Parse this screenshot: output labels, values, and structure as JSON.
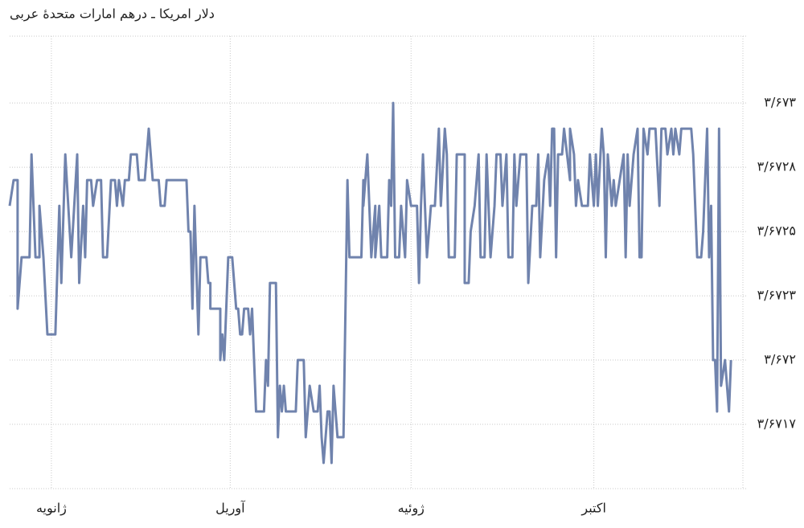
{
  "chart_data": {
    "type": "line",
    "title": "دلار امریکا ـ درهم امارات متحدهٔ عربی",
    "color": "#7083ad",
    "grid": true,
    "xlim": [
      0,
      369
    ],
    "xticks": [
      {
        "value": 21,
        "label": "ژانویه"
      },
      {
        "value": 111,
        "label": "آوریل"
      },
      {
        "value": 202,
        "label": "ژوئیه"
      },
      {
        "value": 294,
        "label": "اکتبر"
      }
    ],
    "ylim": [
      3.6715,
      3.67326
    ],
    "yticks": [
      {
        "value": 3.673,
        "label": "۳/۶۷۳"
      },
      {
        "value": 3.67275,
        "label": "۳/۶۷۲۸"
      },
      {
        "value": 3.6725,
        "label": "۳/۶۷۲۵"
      },
      {
        "value": 3.67225,
        "label": "۳/۶۷۲۳"
      },
      {
        "value": 3.672,
        "label": "۳/۶۷۲"
      },
      {
        "value": 3.67175,
        "label": "۳/۶۷۱۷"
      }
    ],
    "x": [
      0,
      2,
      4,
      4,
      6,
      10,
      11,
      13,
      15,
      15,
      17,
      19,
      23,
      25,
      26,
      28,
      31,
      34,
      35,
      37,
      38,
      39,
      41,
      42,
      44,
      46,
      47,
      49,
      51,
      53,
      54,
      55,
      57,
      58,
      60,
      61,
      64,
      65,
      68,
      69,
      70,
      72,
      75,
      76,
      78,
      79,
      89,
      90,
      91,
      92,
      93,
      95,
      96,
      99,
      100,
      101,
      101,
      106,
      106,
      107,
      108,
      110,
      112,
      114,
      115,
      116,
      117,
      118,
      120,
      121,
      122,
      123,
      124,
      128,
      129,
      130,
      131,
      134,
      135,
      136,
      137,
      138,
      139,
      144,
      145,
      148,
      149,
      151,
      153,
      155,
      156,
      157,
      158,
      160,
      161,
      162,
      163,
      165,
      168,
      170,
      171,
      177,
      178,
      178,
      180,
      181,
      182,
      184,
      184,
      186,
      187,
      190,
      191,
      192,
      193,
      194,
      196,
      197,
      199,
      200,
      202,
      205,
      206,
      207,
      208,
      209,
      210,
      212,
      213,
      214,
      216,
      217,
      219,
      220,
      221,
      224,
      225,
      229,
      229,
      231,
      232,
      234,
      236,
      237,
      239,
      240,
      241,
      242,
      244,
      245,
      247,
      248,
      250,
      251,
      253,
      254,
      255,
      257,
      260,
      261,
      263,
      265,
      266,
      267,
      269,
      271,
      272,
      273,
      274,
      275,
      276,
      278,
      279,
      282,
      282,
      284,
      285,
      286,
      288,
      291,
      292,
      294,
      295,
      296,
      298,
      299,
      300,
      301,
      303,
      304,
      305,
      307,
      309,
      310,
      311,
      312,
      314,
      316,
      317,
      318,
      319,
      321,
      322,
      325,
      327,
      328,
      330,
      331,
      333,
      334,
      335,
      337,
      338,
      343,
      344,
      346,
      348,
      349,
      351,
      352,
      353,
      354,
      355,
      356,
      357,
      358,
      360,
      362,
      363
    ],
    "values": [
      3.6726,
      3.6727,
      3.6727,
      3.6722,
      3.6724,
      3.6724,
      3.6728,
      3.6724,
      3.6724,
      3.6726,
      3.6724,
      3.6721,
      3.6721,
      3.6726,
      3.6723,
      3.6728,
      3.6724,
      3.6728,
      3.6723,
      3.6726,
      3.6724,
      3.6727,
      3.6727,
      3.6726,
      3.6727,
      3.6727,
      3.6724,
      3.6724,
      3.6727,
      3.6727,
      3.6726,
      3.6727,
      3.6726,
      3.6727,
      3.6727,
      3.6728,
      3.6728,
      3.6727,
      3.6727,
      3.6728,
      3.6729,
      3.6727,
      3.6727,
      3.6726,
      3.6726,
      3.6727,
      3.6727,
      3.6725,
      3.6725,
      3.6722,
      3.6726,
      3.6721,
      3.6724,
      3.6724,
      3.6723,
      3.6723,
      3.6722,
      3.6722,
      3.672,
      3.6721,
      3.672,
      3.6724,
      3.6724,
      3.6722,
      3.6722,
      3.6721,
      3.6721,
      3.6722,
      3.6722,
      3.6721,
      3.6722,
      3.672,
      3.6718,
      3.6718,
      3.672,
      3.6719,
      3.6723,
      3.6723,
      3.6717,
      3.6719,
      3.6718,
      3.6719,
      3.6718,
      3.6718,
      3.672,
      3.672,
      3.6717,
      3.6719,
      3.6718,
      3.6718,
      3.6719,
      3.6717,
      3.6716,
      3.6718,
      3.6718,
      3.6716,
      3.6719,
      3.6717,
      3.6717,
      3.6727,
      3.6724,
      3.6724,
      3.6727,
      3.6726,
      3.6728,
      3.6726,
      3.6724,
      3.6726,
      3.6724,
      3.6726,
      3.6724,
      3.6724,
      3.6727,
      3.6726,
      3.673,
      3.6724,
      3.6724,
      3.6726,
      3.6724,
      3.6727,
      3.6726,
      3.6726,
      3.6723,
      3.6726,
      3.6728,
      3.6726,
      3.6724,
      3.6726,
      3.6726,
      3.6726,
      3.6729,
      3.6726,
      3.6729,
      3.6728,
      3.6724,
      3.6724,
      3.6728,
      3.6728,
      3.6723,
      3.6723,
      3.6725,
      3.6726,
      3.6728,
      3.6724,
      3.6724,
      3.6728,
      3.6726,
      3.6724,
      3.6726,
      3.6728,
      3.6728,
      3.6726,
      3.6728,
      3.6724,
      3.6724,
      3.6728,
      3.6726,
      3.6728,
      3.6728,
      3.6723,
      3.6726,
      3.6726,
      3.6728,
      3.6724,
      3.6727,
      3.6728,
      3.6726,
      3.6729,
      3.6729,
      3.6724,
      3.6728,
      3.6728,
      3.6729,
      3.6727,
      3.6729,
      3.6728,
      3.6726,
      3.6727,
      3.6726,
      3.6726,
      3.6728,
      3.6726,
      3.6728,
      3.6726,
      3.6729,
      3.6728,
      3.6724,
      3.6728,
      3.6726,
      3.6727,
      3.6726,
      3.6727,
      3.6728,
      3.6724,
      3.6728,
      3.6726,
      3.6728,
      3.6729,
      3.6724,
      3.6724,
      3.6729,
      3.6728,
      3.6729,
      3.6729,
      3.6726,
      3.6729,
      3.6729,
      3.6728,
      3.6729,
      3.6728,
      3.6729,
      3.6728,
      3.6729,
      3.6729,
      3.6728,
      3.6724,
      3.6724,
      3.6725,
      3.6729,
      3.6724,
      3.6726,
      3.672,
      3.672,
      3.6718,
      3.6729,
      3.6719,
      3.672,
      3.6718,
      3.672
    ]
  }
}
